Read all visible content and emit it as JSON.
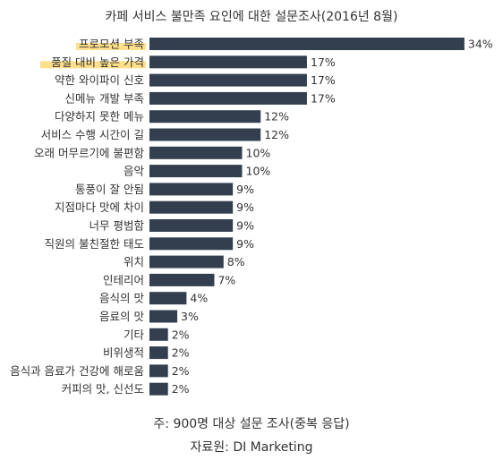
{
  "chart_data": {
    "type": "bar",
    "orientation": "horizontal",
    "title": "카페 서비스 불만족 요인에 대한 설문조사(2016년 8월)",
    "value_suffix": "%",
    "categories": [
      "프로모션 부족",
      "품질 대비 높은 가격",
      "약한 와이파이 신호",
      "신메뉴 개발 부족",
      "다양하지 못한 메뉴",
      "서비스 수행 시간이 길",
      "오래 머무르기에 불편함",
      "음악",
      "통풍이 잘 안됨",
      "지점마다 맛에 차이",
      "너무 평범함",
      "직원의 불친절한 태도",
      "위치",
      "인테리어",
      "음식의 맛",
      "음료의 맛",
      "기타",
      "비위생적",
      "음식과 음료가 건강에 해로움",
      "커피의 맛, 신선도"
    ],
    "values": [
      34,
      17,
      17,
      17,
      12,
      12,
      10,
      10,
      9,
      9,
      9,
      9,
      8,
      7,
      4,
      3,
      2,
      2,
      2,
      2
    ],
    "highlighted": [
      "프로모션 부족",
      "품질 대비 높은 가격"
    ],
    "bar_color": "#333f4f",
    "highlight_color": "#ffe08a",
    "grid": false,
    "legend": "none"
  },
  "notes": {
    "sample": "주: 900명 대상 설문 조사(중복 응답)",
    "source": "자료원: DI Marketing"
  }
}
